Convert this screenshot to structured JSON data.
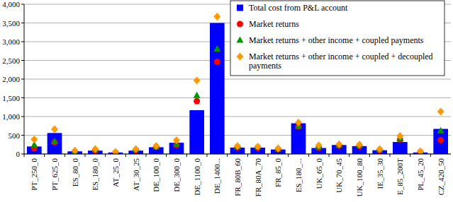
{
  "chart_data": {
    "type": "bar",
    "categories": [
      "PT_250_0",
      "PT_625_0",
      "ES_80_0",
      "ES_180_0",
      "AT_25_0",
      "AT_30_25",
      "DE_100_0",
      "DE_300_0",
      "DE_1100_0",
      "DE_1400...",
      "FR_80B_60",
      "FR_80A_70",
      "FR_85_0",
      "ES_180_...",
      "UK_65_0",
      "UK_70_45",
      "UK_100_80",
      "IE_35_30",
      "E_85_200T",
      "PL_45_20",
      "CZ_420_50"
    ],
    "series": [
      {
        "name": "Total cost from P&L account",
        "type": "bar",
        "color": "#0000ff",
        "values": [
          200,
          560,
          70,
          90,
          40,
          90,
          180,
          300,
          1170,
          3500,
          170,
          170,
          120,
          820,
          160,
          240,
          210,
          100,
          320,
          40,
          670
        ]
      },
      {
        "name": "Market returns",
        "type": "scatter",
        "marker": "circle",
        "color": "#ff0000",
        "values": [
          150,
          310,
          50,
          90,
          30,
          100,
          190,
          240,
          1410,
          2460,
          180,
          170,
          120,
          730,
          170,
          220,
          210,
          100,
          380,
          50,
          370
        ]
      },
      {
        "name": "Market returns + other income + coupled payments",
        "type": "scatter",
        "marker": "triangle",
        "color": "#009900",
        "values": [
          240,
          330,
          70,
          110,
          40,
          120,
          190,
          260,
          1560,
          2800,
          190,
          190,
          130,
          740,
          190,
          240,
          230,
          110,
          400,
          60,
          620
        ]
      },
      {
        "name": "Market returns + other income + coupled + decoupled payments",
        "type": "scatter",
        "marker": "diamond",
        "color": "#ff9900",
        "values": [
          390,
          660,
          90,
          130,
          50,
          130,
          210,
          370,
          1960,
          3670,
          210,
          200,
          150,
          840,
          230,
          260,
          250,
          130,
          480,
          70,
          1130
        ]
      }
    ],
    "ylim": [
      0,
      4000
    ],
    "yticks": [
      0,
      500,
      {
        "value": 1000,
        "label": "1,000"
      },
      {
        "value": 1500,
        "label": "1,500"
      },
      {
        "value": 2000,
        "label": "2,000"
      },
      {
        "value": 2500,
        "label": "2,500"
      },
      {
        "value": 3000,
        "label": "3,000"
      },
      {
        "value": 3500,
        "label": "3,500"
      },
      {
        "value": 4000,
        "label": "4,000"
      }
    ],
    "grid": true,
    "legend": "upper right"
  }
}
